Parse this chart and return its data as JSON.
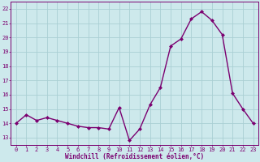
{
  "x": [
    0,
    1,
    2,
    3,
    4,
    5,
    6,
    7,
    8,
    9,
    10,
    11,
    12,
    13,
    14,
    15,
    16,
    17,
    18,
    19,
    20,
    21,
    22,
    23
  ],
  "y": [
    14.0,
    14.6,
    14.2,
    14.4,
    14.2,
    14.0,
    13.8,
    13.7,
    13.7,
    13.6,
    15.1,
    12.8,
    13.6,
    15.3,
    16.5,
    19.4,
    19.9,
    21.3,
    21.8,
    21.2,
    20.2,
    16.1,
    15.0,
    14.0
  ],
  "line_color": "#7b0070",
  "marker": "D",
  "marker_size": 2.0,
  "linewidth": 1.0,
  "xlabel": "Windchill (Refroidissement éolien,°C)",
  "ylabel_ticks": [
    13,
    14,
    15,
    16,
    17,
    18,
    19,
    20,
    21,
    22
  ],
  "ylim": [
    12.5,
    22.5
  ],
  "xlim": [
    -0.5,
    23.5
  ],
  "xticks": [
    0,
    1,
    2,
    3,
    4,
    5,
    6,
    7,
    8,
    9,
    10,
    11,
    12,
    13,
    14,
    15,
    16,
    17,
    18,
    19,
    20,
    21,
    22,
    23
  ],
  "background_color": "#cde9ec",
  "grid_color": "#aacfd4",
  "tick_color": "#7b0070",
  "label_color": "#7b0070",
  "tick_fontsize": 5.0,
  "xlabel_fontsize": 5.5
}
